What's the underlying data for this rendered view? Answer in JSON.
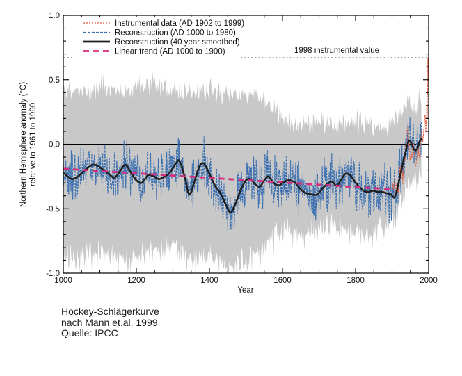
{
  "chart_data": {
    "type": "line",
    "title": "",
    "xlabel": "Year",
    "ylabel_line1": "Northern Hemisphere anomaly (°C)",
    "ylabel_line2": "relative to 1961 to 1990",
    "xlim": [
      1000,
      2000
    ],
    "ylim": [
      -1.0,
      1.0
    ],
    "x_major_ticks": [
      1000,
      1200,
      1400,
      1600,
      1800,
      2000
    ],
    "x_minor_tick_step": 50,
    "y_major_ticks": [
      -1.0,
      -0.5,
      0.0,
      0.5,
      1.0
    ],
    "y_tick_labels": [
      "-1.0",
      "-0.5",
      "0.0",
      "0.5",
      "1.0"
    ],
    "y_minor_tick_step": 0.1,
    "grid": false,
    "legend_position": "top-left",
    "background_color": "#ffffff",
    "frame_color": "#000000",
    "zero_line": 0.0,
    "seed": 11,
    "annotation": {
      "label": "1998 instrumental value",
      "value": 0.67
    },
    "legend": [
      {
        "id": "instrumental",
        "label": "Instrumental data (AD 1902 to 1999)",
        "color": "#e05b40"
      },
      {
        "id": "annual",
        "label": "Reconstruction (AD 1000 to 1980)",
        "color": "#3a6fb0"
      },
      {
        "id": "smoothed",
        "label": "Reconstruction (40 year smoothed)",
        "color": "#1f1f1f"
      },
      {
        "id": "trend",
        "label": "Linear trend (AD 1000 to 1900)",
        "color": "#d42e7d"
      }
    ],
    "series": {
      "uncertainty_band": {
        "color": "#c8c8c8",
        "range": [
          1000,
          1980
        ],
        "step": 2,
        "jitter_upper": 0.11,
        "jitter_lower": 0.14,
        "anchors": [
          [
            1000,
            0.42,
            -0.86
          ],
          [
            1050,
            0.4,
            -0.88
          ],
          [
            1100,
            0.45,
            -0.82
          ],
          [
            1150,
            0.42,
            -0.9
          ],
          [
            1200,
            0.45,
            -0.86
          ],
          [
            1250,
            0.48,
            -0.82
          ],
          [
            1300,
            0.44,
            -0.78
          ],
          [
            1350,
            0.38,
            -0.92
          ],
          [
            1400,
            0.44,
            -0.84
          ],
          [
            1450,
            0.36,
            -0.98
          ],
          [
            1500,
            0.4,
            -0.9
          ],
          [
            1550,
            0.34,
            -0.78
          ],
          [
            1600,
            0.2,
            -0.68
          ],
          [
            1650,
            0.14,
            -0.7
          ],
          [
            1700,
            0.16,
            -0.66
          ],
          [
            1750,
            0.14,
            -0.64
          ],
          [
            1800,
            0.18,
            -0.68
          ],
          [
            1850,
            0.14,
            -0.72
          ],
          [
            1900,
            0.14,
            -0.58
          ],
          [
            1920,
            0.22,
            -0.48
          ],
          [
            1940,
            0.3,
            -0.32
          ],
          [
            1960,
            0.28,
            -0.3
          ],
          [
            1980,
            0.38,
            -0.22
          ]
        ]
      },
      "reconstruction_annual": {
        "color": "#3a6fb0",
        "range": [
          1000,
          1980
        ],
        "noise_amp": 0.24
      },
      "reconstruction_smoothed": {
        "color": "#1f1f1f",
        "points": [
          [
            1000,
            -0.22
          ],
          [
            1012,
            -0.25
          ],
          [
            1025,
            -0.27
          ],
          [
            1040,
            -0.25
          ],
          [
            1060,
            -0.2
          ],
          [
            1080,
            -0.16
          ],
          [
            1095,
            -0.17
          ],
          [
            1110,
            -0.2
          ],
          [
            1125,
            -0.23
          ],
          [
            1140,
            -0.26
          ],
          [
            1155,
            -0.21
          ],
          [
            1170,
            -0.16
          ],
          [
            1185,
            -0.22
          ],
          [
            1200,
            -0.28
          ],
          [
            1215,
            -0.3
          ],
          [
            1232,
            -0.24
          ],
          [
            1248,
            -0.25
          ],
          [
            1262,
            -0.27
          ],
          [
            1278,
            -0.25
          ],
          [
            1292,
            -0.22
          ],
          [
            1308,
            -0.15
          ],
          [
            1318,
            -0.13
          ],
          [
            1332,
            -0.25
          ],
          [
            1345,
            -0.39
          ],
          [
            1360,
            -0.28
          ],
          [
            1373,
            -0.17
          ],
          [
            1385,
            -0.15
          ],
          [
            1400,
            -0.23
          ],
          [
            1415,
            -0.32
          ],
          [
            1430,
            -0.38
          ],
          [
            1445,
            -0.47
          ],
          [
            1458,
            -0.53
          ],
          [
            1470,
            -0.47
          ],
          [
            1485,
            -0.36
          ],
          [
            1500,
            -0.28
          ],
          [
            1512,
            -0.27
          ],
          [
            1525,
            -0.31
          ],
          [
            1538,
            -0.33
          ],
          [
            1550,
            -0.28
          ],
          [
            1562,
            -0.25
          ],
          [
            1575,
            -0.3
          ],
          [
            1590,
            -0.32
          ],
          [
            1605,
            -0.29
          ],
          [
            1620,
            -0.28
          ],
          [
            1635,
            -0.3
          ],
          [
            1650,
            -0.35
          ],
          [
            1665,
            -0.38
          ],
          [
            1680,
            -0.39
          ],
          [
            1695,
            -0.39
          ],
          [
            1710,
            -0.34
          ],
          [
            1722,
            -0.31
          ],
          [
            1735,
            -0.29
          ],
          [
            1748,
            -0.32
          ],
          [
            1760,
            -0.28
          ],
          [
            1772,
            -0.23
          ],
          [
            1785,
            -0.24
          ],
          [
            1798,
            -0.29
          ],
          [
            1810,
            -0.33
          ],
          [
            1822,
            -0.36
          ],
          [
            1835,
            -0.37
          ],
          [
            1848,
            -0.36
          ],
          [
            1860,
            -0.37
          ],
          [
            1872,
            -0.37
          ],
          [
            1885,
            -0.38
          ],
          [
            1897,
            -0.39
          ],
          [
            1907,
            -0.41
          ],
          [
            1917,
            -0.31
          ],
          [
            1927,
            -0.18
          ],
          [
            1936,
            -0.07
          ],
          [
            1945,
            0.02
          ],
          [
            1952,
            0.01
          ],
          [
            1960,
            -0.04
          ],
          [
            1968,
            -0.04
          ],
          [
            1975,
            0.02
          ],
          [
            1980,
            0.04
          ]
        ]
      },
      "linear_trend": {
        "color": "#d42e7d",
        "x": [
          1000,
          1900
        ],
        "y": [
          -0.19,
          -0.35
        ]
      },
      "instrumental": {
        "color": "#e05b40",
        "range": [
          1902,
          1999
        ],
        "noise_amp": 0.05,
        "points": [
          [
            1902,
            -0.31
          ],
          [
            1904,
            -0.36
          ],
          [
            1907,
            -0.28
          ],
          [
            1910,
            -0.35
          ],
          [
            1913,
            -0.3
          ],
          [
            1917,
            -0.38
          ],
          [
            1921,
            -0.22
          ],
          [
            1925,
            -0.2
          ],
          [
            1929,
            -0.28
          ],
          [
            1932,
            -0.12
          ],
          [
            1935,
            -0.14
          ],
          [
            1938,
            0.02
          ],
          [
            1941,
            0.08
          ],
          [
            1944,
            0.1
          ],
          [
            1947,
            -0.02
          ],
          [
            1950,
            -0.15
          ],
          [
            1954,
            -0.08
          ],
          [
            1957,
            0.02
          ],
          [
            1960,
            -0.02
          ],
          [
            1964,
            -0.18
          ],
          [
            1968,
            -0.1
          ],
          [
            1972,
            -0.03
          ],
          [
            1976,
            -0.12
          ],
          [
            1979,
            0.05
          ],
          [
            1981,
            0.12
          ],
          [
            1984,
            0.02
          ],
          [
            1987,
            0.12
          ],
          [
            1990,
            0.25
          ],
          [
            1991,
            0.22
          ],
          [
            1992,
            0.08
          ],
          [
            1994,
            0.18
          ],
          [
            1995,
            0.29
          ],
          [
            1996,
            0.2
          ],
          [
            1997,
            0.4
          ],
          [
            1998,
            0.67
          ],
          [
            1999,
            0.48
          ]
        ]
      }
    }
  },
  "caption": {
    "line1": "Hockey-Schlägerkurve",
    "line2": "nach Mann et.al. 1999",
    "line3": "Quelle: IPCC"
  }
}
